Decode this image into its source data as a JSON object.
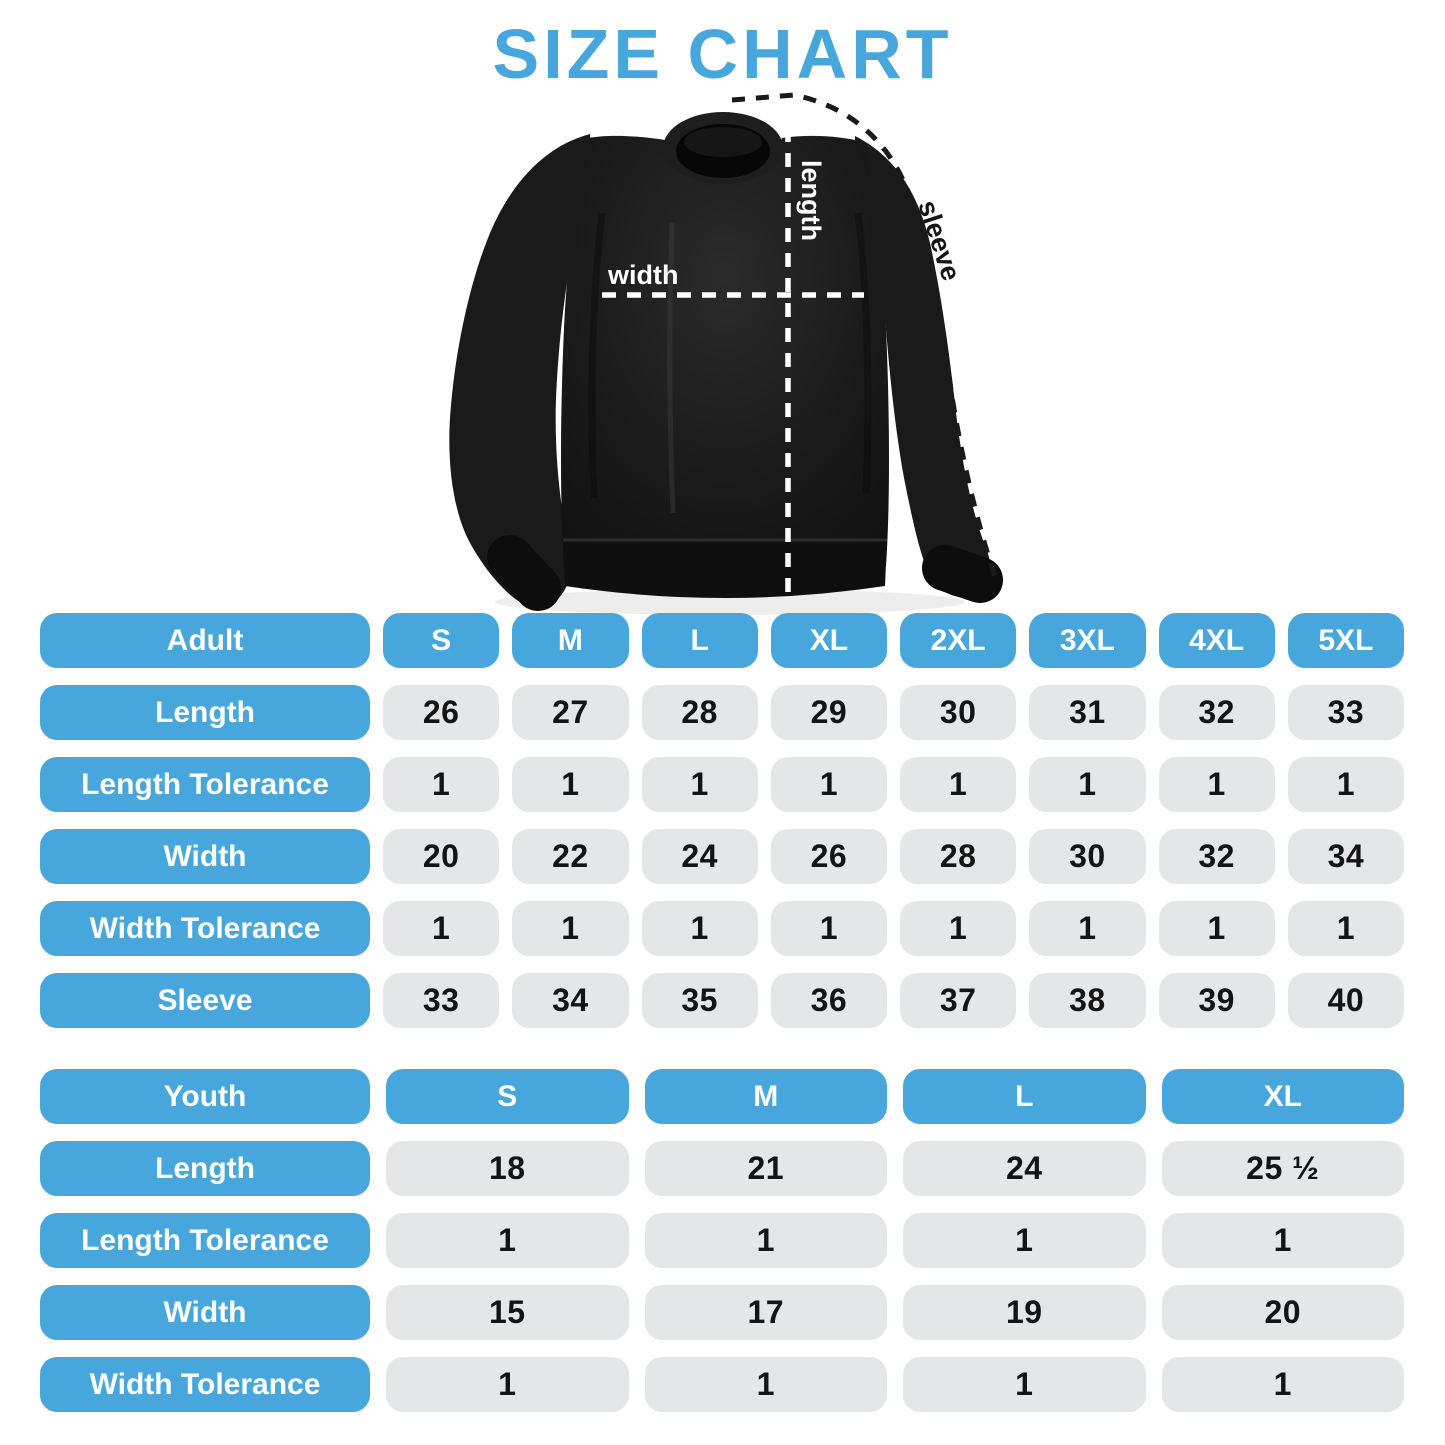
{
  "title": "SIZE CHART",
  "colors": {
    "accent_blue": "#47A7DC",
    "cell_gray": "#E5E6E8",
    "cell_text": "#141414",
    "garment_black": "#161616",
    "measure_line_white": "#FFFFFF",
    "measure_line_black": "#1A1A1A"
  },
  "diagram": {
    "garment": "black-crewneck-sweatshirt",
    "labels": {
      "width": "width",
      "length": "length",
      "sleeve": "sleeve"
    }
  },
  "adult_table": {
    "header": {
      "label": "Adult",
      "sizes": [
        "S",
        "M",
        "L",
        "XL",
        "2XL",
        "3XL",
        "4XL",
        "5XL"
      ]
    },
    "rows": [
      {
        "label": "Length",
        "values": [
          "26",
          "27",
          "28",
          "29",
          "30",
          "31",
          "32",
          "33"
        ]
      },
      {
        "label": "Length Tolerance",
        "values": [
          "1",
          "1",
          "1",
          "1",
          "1",
          "1",
          "1",
          "1"
        ]
      },
      {
        "label": "Width",
        "values": [
          "20",
          "22",
          "24",
          "26",
          "28",
          "30",
          "32",
          "34"
        ]
      },
      {
        "label": "Width Tolerance",
        "values": [
          "1",
          "1",
          "1",
          "1",
          "1",
          "1",
          "1",
          "1"
        ]
      },
      {
        "label": "Sleeve",
        "values": [
          "33",
          "34",
          "35",
          "36",
          "37",
          "38",
          "39",
          "40"
        ]
      }
    ]
  },
  "youth_table": {
    "header": {
      "label": "Youth",
      "sizes": [
        "S",
        "M",
        "L",
        "XL"
      ]
    },
    "rows": [
      {
        "label": "Length",
        "values": [
          "18",
          "21",
          "24",
          "25 ½"
        ]
      },
      {
        "label": "Length Tolerance",
        "values": [
          "1",
          "1",
          "1",
          "1"
        ]
      },
      {
        "label": "Width",
        "values": [
          "15",
          "17",
          "19",
          "20"
        ]
      },
      {
        "label": "Width Tolerance",
        "values": [
          "1",
          "1",
          "1",
          "1"
        ]
      }
    ]
  },
  "chart_data": [
    {
      "type": "table",
      "title": "Adult sweatshirt sizes (inches)",
      "columns": [
        "Adult",
        "S",
        "M",
        "L",
        "XL",
        "2XL",
        "3XL",
        "4XL",
        "5XL"
      ],
      "rows": [
        [
          "Length",
          26,
          27,
          28,
          29,
          30,
          31,
          32,
          33
        ],
        [
          "Length Tolerance",
          1,
          1,
          1,
          1,
          1,
          1,
          1,
          1
        ],
        [
          "Width",
          20,
          22,
          24,
          26,
          28,
          30,
          32,
          34
        ],
        [
          "Width Tolerance",
          1,
          1,
          1,
          1,
          1,
          1,
          1,
          1
        ],
        [
          "Sleeve",
          33,
          34,
          35,
          36,
          37,
          38,
          39,
          40
        ]
      ]
    },
    {
      "type": "table",
      "title": "Youth sweatshirt sizes (inches)",
      "columns": [
        "Youth",
        "S",
        "M",
        "L",
        "XL"
      ],
      "rows": [
        [
          "Length",
          18,
          21,
          24,
          25.5
        ],
        [
          "Length Tolerance",
          1,
          1,
          1,
          1
        ],
        [
          "Width",
          15,
          17,
          19,
          20
        ],
        [
          "Width Tolerance",
          1,
          1,
          1,
          1
        ]
      ]
    }
  ]
}
